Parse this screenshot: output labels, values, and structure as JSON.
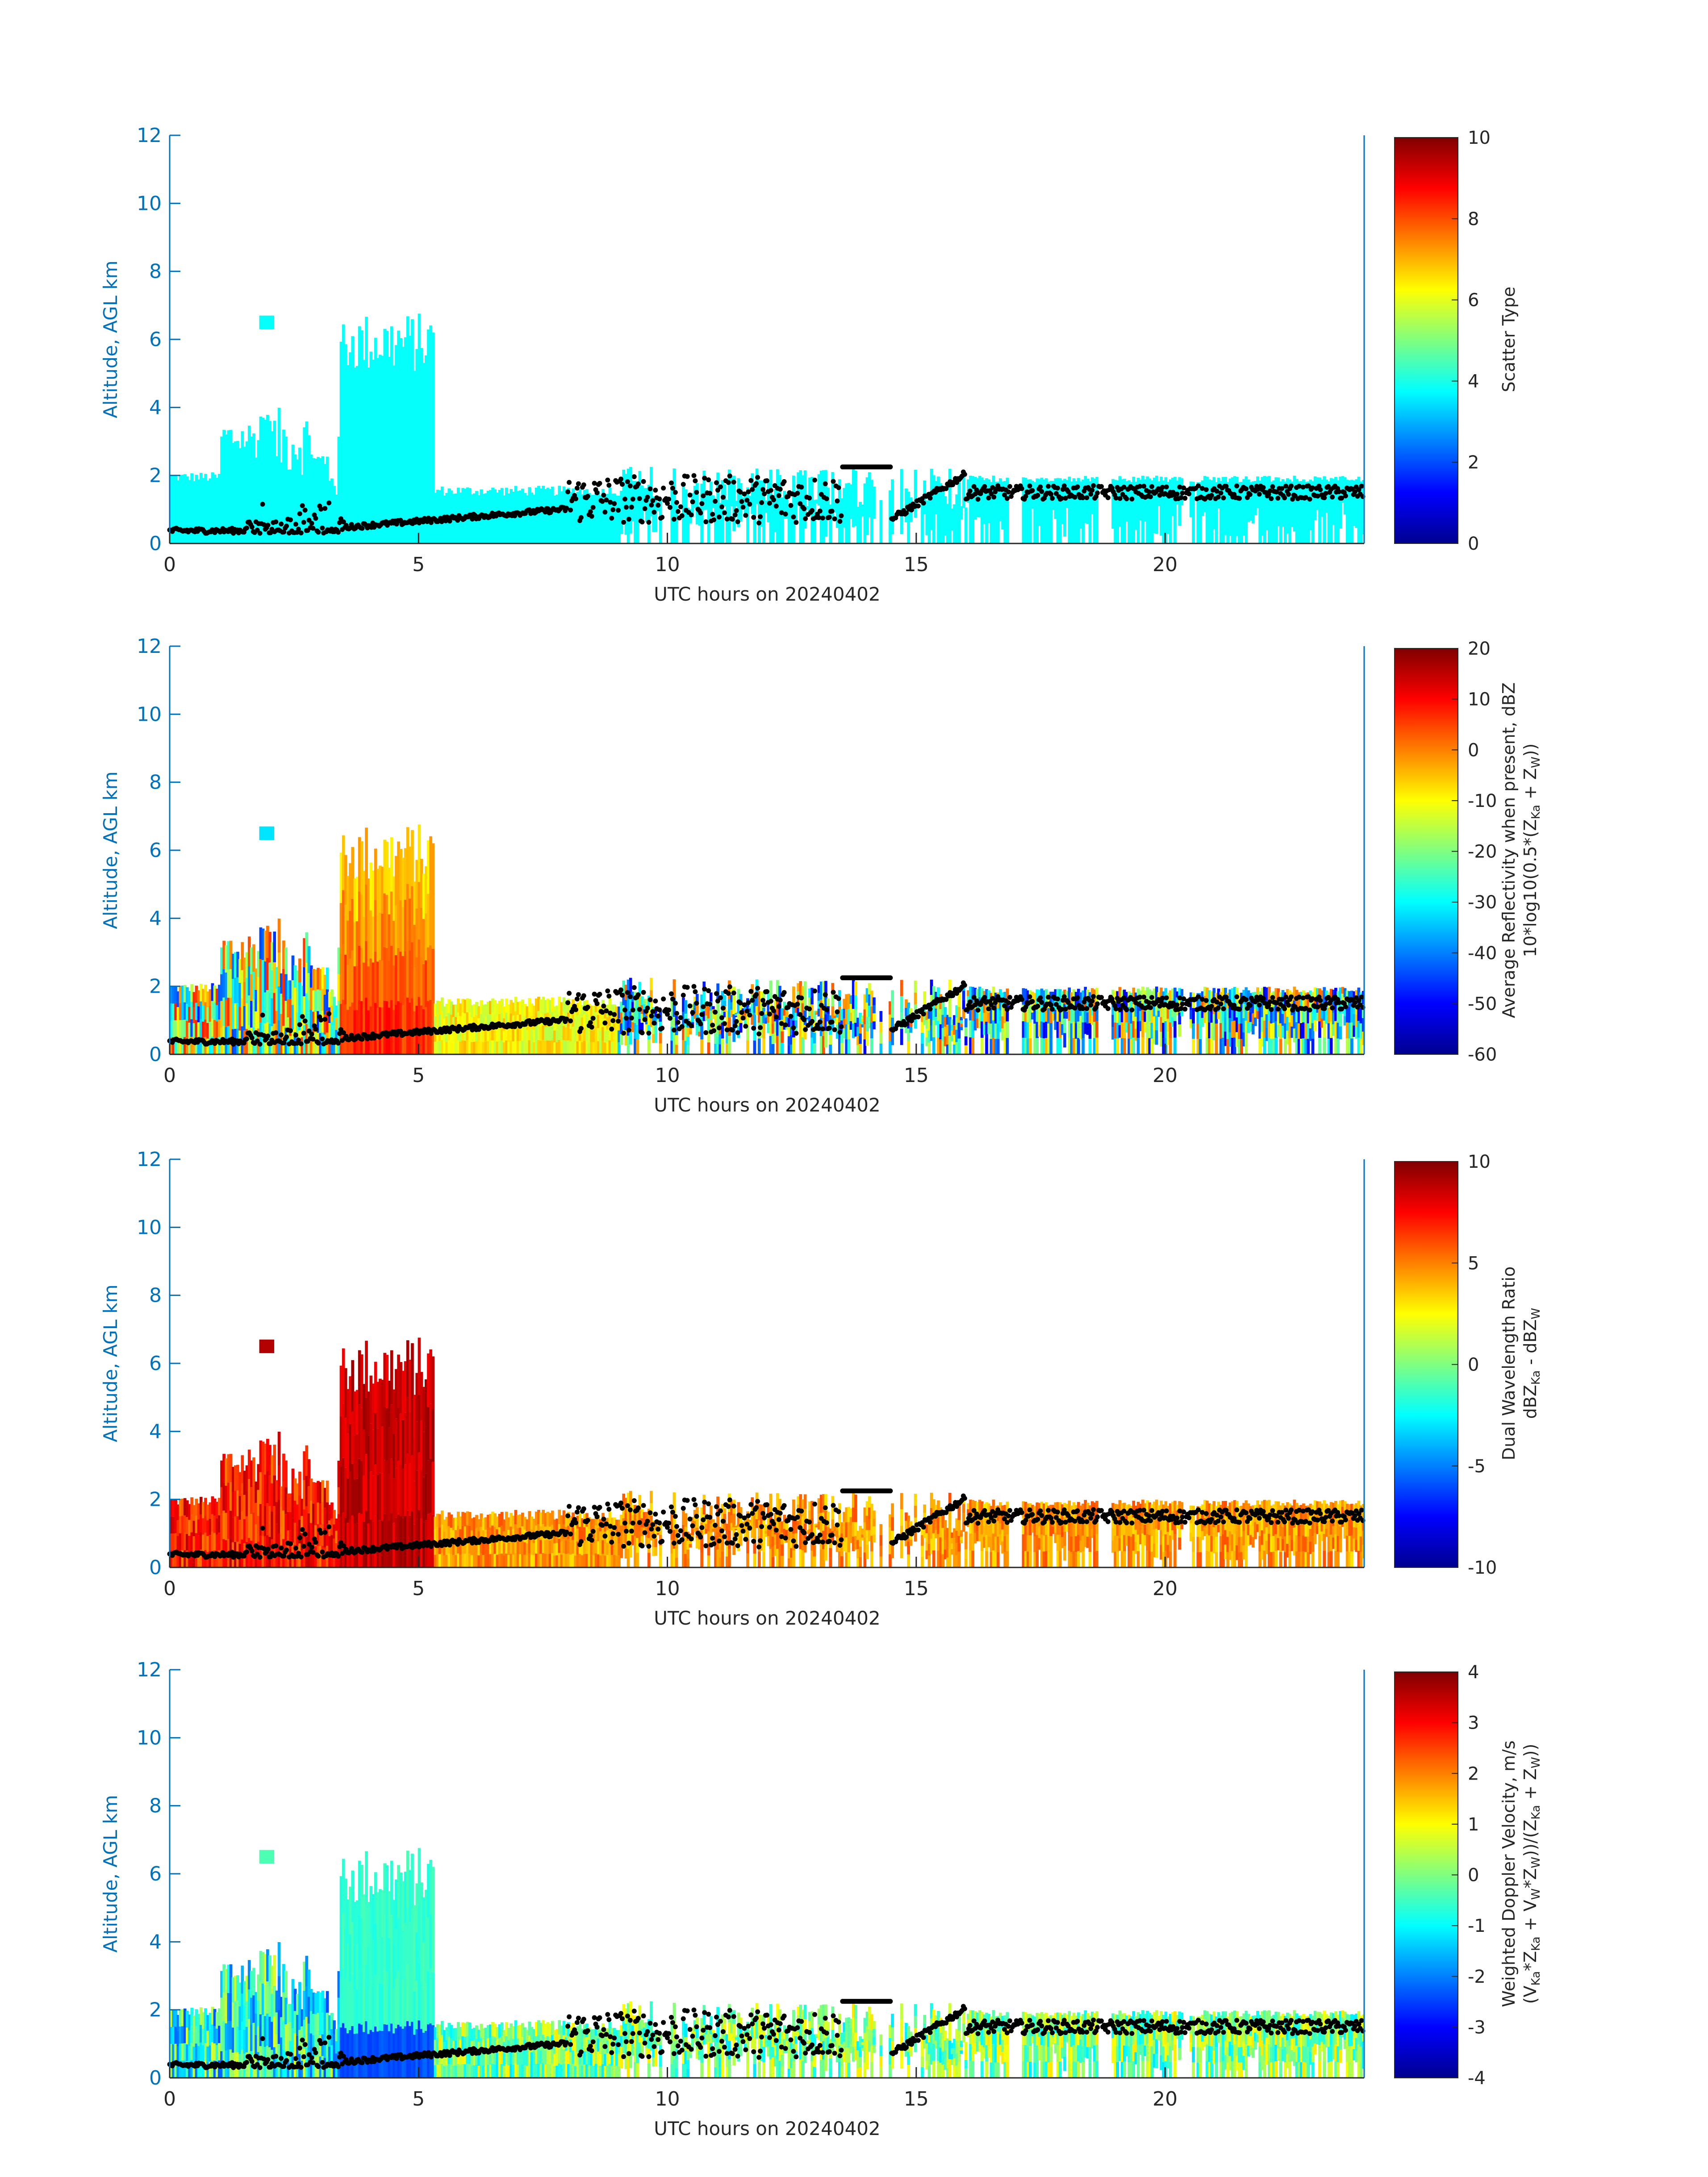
{
  "figure": {
    "date": "20240402"
  },
  "colormap": "jet",
  "colors": {
    "axis_y": "#0072BD",
    "axis_x": "#262626",
    "dots": "#000000",
    "background": "#ffffff"
  },
  "chart_data": [
    {
      "type": "heatmap",
      "ylabel": "Altitude, AGL km",
      "xlabel": "UTC hours on 20240402",
      "xlim": [
        0,
        24
      ],
      "ylim": [
        0,
        12
      ],
      "xticks": [
        "0",
        "5",
        "10",
        "15",
        "20"
      ],
      "yticks": [
        "0",
        "2",
        "4",
        "6",
        "8",
        "10",
        "12"
      ],
      "colorbar": {
        "label_lines": [
          "Scatter Type"
        ],
        "range": [
          0,
          10
        ],
        "ticks": [
          "0",
          "2",
          "4",
          "6",
          "8",
          "10"
        ]
      },
      "field": "scatter",
      "description_value": 3.8
    },
    {
      "type": "heatmap",
      "ylabel": "Altitude, AGL km",
      "xlabel": "UTC hours on 20240402",
      "xlim": [
        0,
        24
      ],
      "ylim": [
        0,
        12
      ],
      "xticks": [
        "0",
        "5",
        "10",
        "15",
        "20"
      ],
      "yticks": [
        "0",
        "2",
        "4",
        "6",
        "8",
        "10",
        "12"
      ],
      "colorbar": {
        "label_lines": [
          "Average Reflectivity when present, dBZ",
          "10*log10(0.5*(Z_Ka + Z_W))"
        ],
        "range": [
          -60,
          20
        ],
        "ticks": [
          "-60",
          "-50",
          "-40",
          "-30",
          "-20",
          "-10",
          "0",
          "10",
          "20"
        ]
      },
      "field": "reflectivity"
    },
    {
      "type": "heatmap",
      "ylabel": "Altitude, AGL km",
      "xlabel": "UTC hours on 20240402",
      "xlim": [
        0,
        24
      ],
      "ylim": [
        0,
        12
      ],
      "xticks": [
        "0",
        "5",
        "10",
        "15",
        "20"
      ],
      "yticks": [
        "0",
        "2",
        "4",
        "6",
        "8",
        "10",
        "12"
      ],
      "colorbar": {
        "label_lines": [
          "Dual Wavelength Ratio",
          "dBZ_Ka - dBZ_W"
        ],
        "range": [
          -10,
          10
        ],
        "ticks": [
          "-10",
          "-5",
          "0",
          "5",
          "10"
        ]
      },
      "field": "dwr"
    },
    {
      "type": "heatmap",
      "ylabel": "Altitude, AGL km",
      "xlabel": "UTC hours on 20240402",
      "xlim": [
        0,
        24
      ],
      "ylim": [
        0,
        12
      ],
      "xticks": [
        "0",
        "5",
        "10",
        "15",
        "20"
      ],
      "yticks": [
        "0",
        "2",
        "4",
        "6",
        "8",
        "10",
        "12"
      ],
      "colorbar": {
        "label_lines": [
          "Weighted Doppler Velocity, m/s",
          "(V_Ka*Z_Ka + V_W*Z_W))/(Z_Ka + Z_W))"
        ],
        "range": [
          -4,
          4
        ],
        "ticks": [
          "-4",
          "-3",
          "-2",
          "-1",
          "0",
          "1",
          "2",
          "3",
          "4"
        ]
      },
      "field": "velocity"
    }
  ]
}
